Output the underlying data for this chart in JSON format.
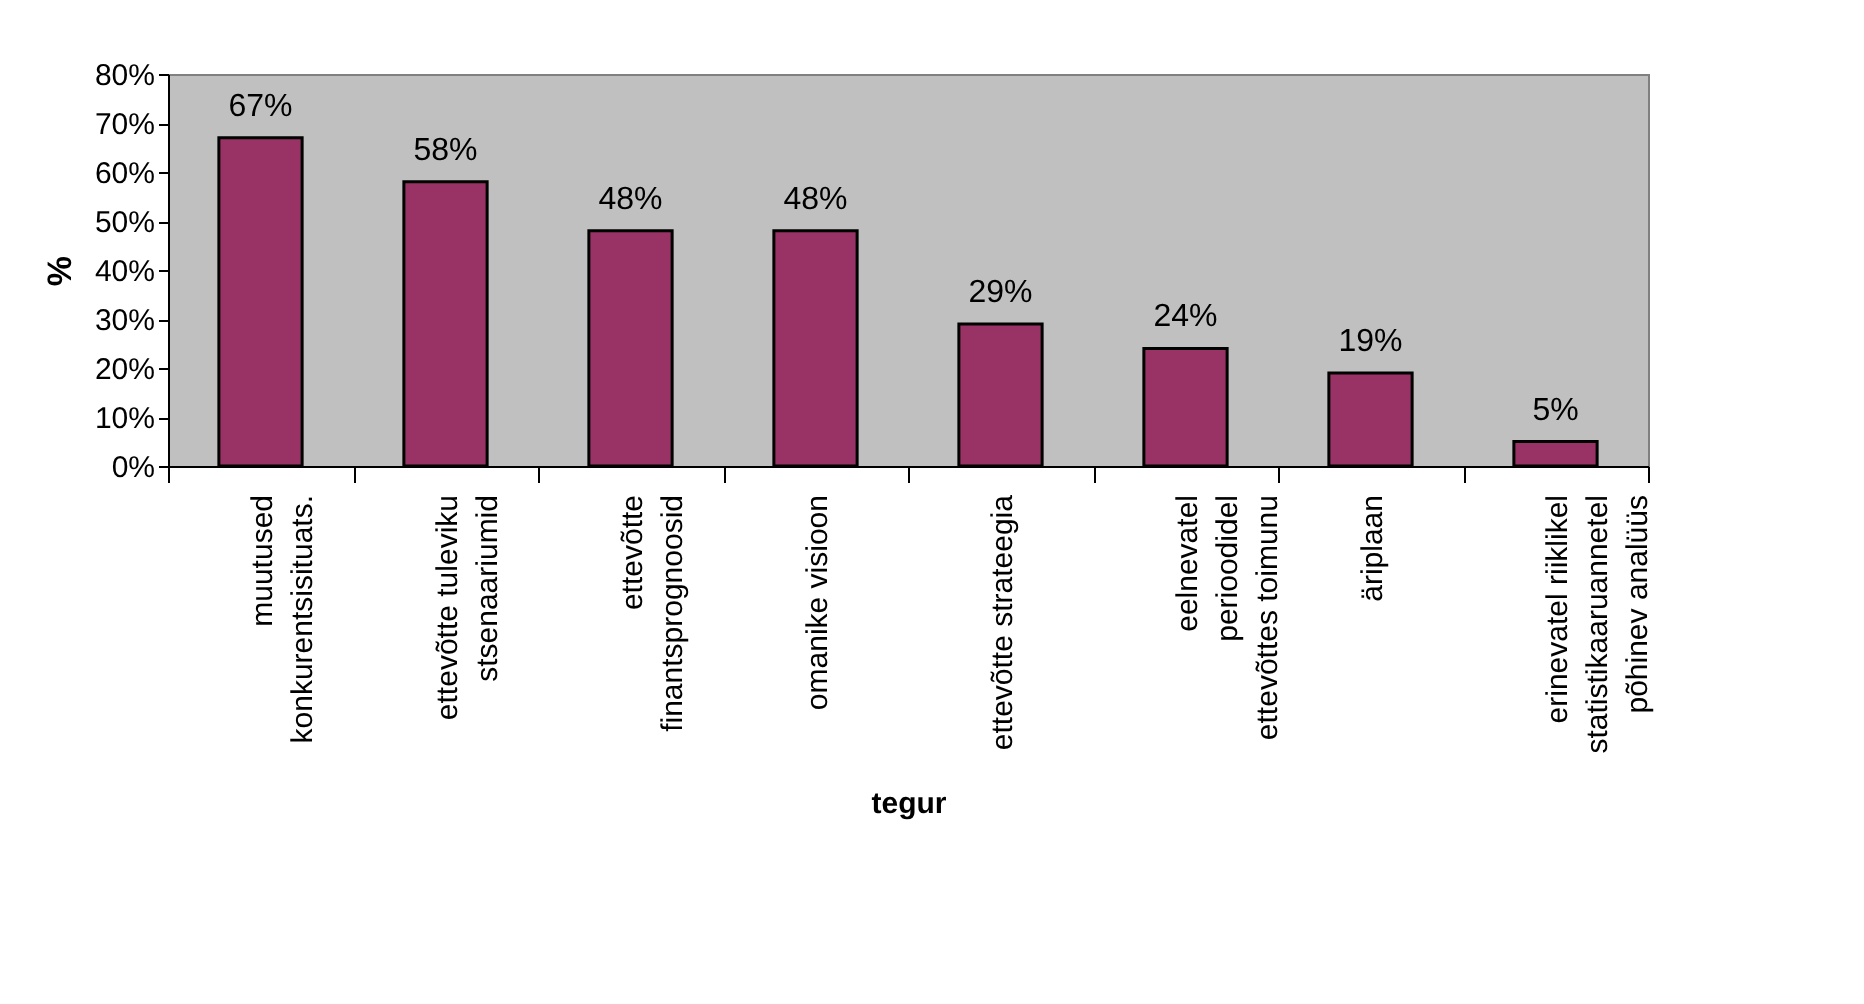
{
  "chart_data": {
    "type": "bar",
    "xlabel": "tegur",
    "ylabel": "%",
    "categories": [
      "muutused\nkonkurentsisituats.",
      "ettevõtte tuleviku\nstsenaariumid",
      "ettevõtte\nfinantsprognoosid",
      "omanike visioon",
      "ettevõtte strateegia",
      "eelnevatel\nperioodidel\nettevõttes toimunu",
      "äriplaan",
      "erinevatel riiklikel\nstatistikaaruannetel\npõhinev analüüs"
    ],
    "values": [
      67,
      58,
      48,
      48,
      29,
      24,
      19,
      5
    ],
    "value_labels": [
      "67%",
      "58%",
      "48%",
      "48%",
      "29%",
      "24%",
      "19%",
      "5%"
    ],
    "color": "#993366",
    "ylim": [
      0,
      80
    ],
    "yticks": [
      {
        "value": 0,
        "label": "0%"
      },
      {
        "value": 10,
        "label": "10%"
      },
      {
        "value": 20,
        "label": "20%"
      },
      {
        "value": 30,
        "label": "30%"
      },
      {
        "value": 40,
        "label": "40%"
      },
      {
        "value": 50,
        "label": "50%"
      },
      {
        "value": 60,
        "label": "60%"
      },
      {
        "value": 70,
        "label": "70%"
      },
      {
        "value": 80,
        "label": "80%"
      }
    ]
  }
}
